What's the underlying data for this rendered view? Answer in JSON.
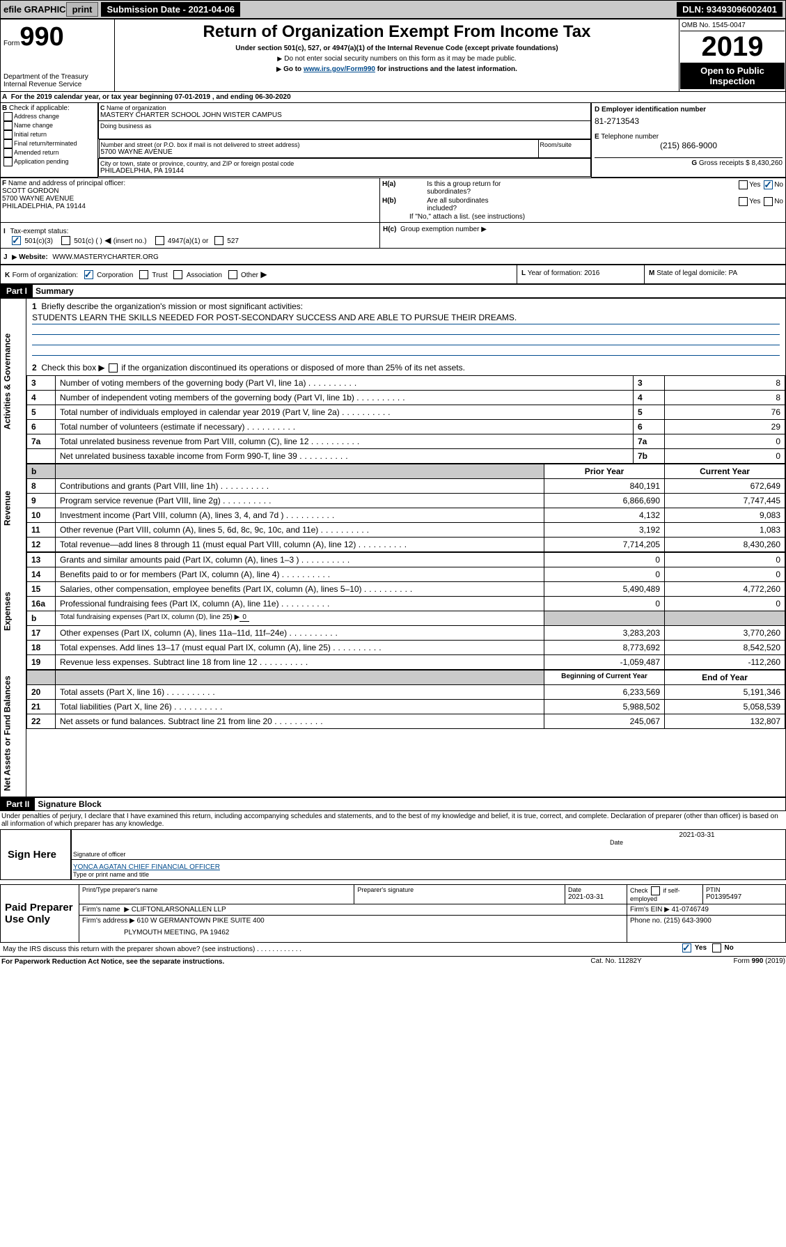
{
  "topbar": {
    "efile": "efile GRAPHIC",
    "print": "print",
    "subdate_label": "Submission Date - 2021-04-06",
    "dln": "DLN: 93493096002401"
  },
  "header": {
    "form": "Form",
    "form990": "990",
    "title": "Return of Organization Exempt From Income Tax",
    "sub1": "Under section 501(c), 527, or 4947(a)(1) of the Internal Revenue Code (except private foundations)",
    "sub2": "Do not enter social security numbers on this form as it may be made public.",
    "sub3_pre": "Go to ",
    "sub3_link": "www.irs.gov/Form990",
    "sub3_post": " for instructions and the latest information.",
    "dept1": "Department of the Treasury",
    "dept2": "Internal Revenue Service",
    "omb": "OMB No. 1545-0047",
    "year": "2019",
    "open1": "Open to Public",
    "open2": "Inspection"
  },
  "a": {
    "line": "For the 2019 calendar year, or tax year beginning 07-01-2019      , and ending 06-30-2020",
    "label": "A"
  },
  "b": {
    "label": "B",
    "check": "Check if applicable:",
    "o1": "Address change",
    "o2": "Name change",
    "o3": "Initial return",
    "o4": "Final return/terminated",
    "o5": "Amended return",
    "o6": "Application pending"
  },
  "c": {
    "label": "C",
    "name_lbl": "Name of organization",
    "name": "MASTERY CHARTER SCHOOL JOHN WISTER CAMPUS",
    "dba_lbl": "Doing business as",
    "addr_lbl": "Number and street (or P.O. box if mail is not delivered to street address)",
    "room": "Room/suite",
    "addr": "5700 WAYNE AVENUE",
    "city_lbl": "City or town, state or province, country, and ZIP or foreign postal code",
    "city": "PHILADELPHIA, PA  19144"
  },
  "d": {
    "label": "D",
    "lbl": "Employer identification number",
    "val": "81-2713543"
  },
  "e": {
    "label": "E",
    "lbl": "Telephone number",
    "val": "(215) 866-9000"
  },
  "g": {
    "label": "G",
    "lbl": "Gross receipts $",
    "val": "8,430,260"
  },
  "f": {
    "label": "F",
    "lbl": "Name and address of principal officer:",
    "n": "SCOTT GORDON",
    "a1": "5700 WAYNE AVENUE",
    "a2": "PHILADELPHIA, PA  19144"
  },
  "h": {
    "a": "H(a)",
    "atxt1": "Is this a group return for",
    "atxt2": "subordinates?",
    "b": "H(b)",
    "btxt1": "Are all subordinates",
    "btxt2": "included?",
    "bnote": "If \"No,\" attach a list. (see instructions)",
    "c": "H(c)",
    "ctxt": "Group exemption number",
    "yes": "Yes",
    "no": "No"
  },
  "i": {
    "label": "I",
    "tax": "Tax-exempt status:",
    "o1": "501(c)(3)",
    "o2": "501(c) (   )",
    "o2a": "(insert no.)",
    "o3": "4947(a)(1) or",
    "o4": "527"
  },
  "j": {
    "label": "J",
    "site": "Website:",
    "url": "WWW.MASTERYCHARTER.ORG"
  },
  "k": {
    "label": "K",
    "lbl": "Form of organization:",
    "o1": "Corporation",
    "o2": "Trust",
    "o3": "Association",
    "o4": "Other"
  },
  "l": {
    "label": "L",
    "lbl": "Year of formation:",
    "val": "2016"
  },
  "m": {
    "label": "M",
    "lbl": "State of legal domicile:",
    "val": "PA"
  },
  "p1": {
    "label": "Part I",
    "title": "Summary"
  },
  "sec_labels": {
    "ag": "Activities & Governance",
    "rev": "Revenue",
    "exp": "Expenses",
    "nab": "Net Assets or Fund Balances"
  },
  "q1": {
    "n": "1",
    "t": "Briefly describe the organization's mission or most significant activities:",
    "val": "STUDENTS LEARN THE SKILLS NEEDED FOR POST-SECONDARY SUCCESS AND ARE ABLE TO PURSUE THEIR DREAMS."
  },
  "q2": {
    "n": "2",
    "t": "Check this box",
    "t2": "if the organization discontinued its operations or disposed of more than 25% of its net assets."
  },
  "rows_ag": [
    {
      "n": "3",
      "t": "Number of voting members of the governing body (Part VI, line 1a)",
      "c": "3",
      "v": "8"
    },
    {
      "n": "4",
      "t": "Number of independent voting members of the governing body (Part VI, line 1b)",
      "c": "4",
      "v": "8"
    },
    {
      "n": "5",
      "t": "Total number of individuals employed in calendar year 2019 (Part V, line 2a)",
      "c": "5",
      "v": "76"
    },
    {
      "n": "6",
      "t": "Total number of volunteers (estimate if necessary)",
      "c": "6",
      "v": "29"
    },
    {
      "n": "7a",
      "t": "Total unrelated business revenue from Part VIII, column (C), line 12",
      "c": "7a",
      "v": "0"
    },
    {
      "n": " ",
      "t": "Net unrelated business taxable income from Form 990-T, line 39",
      "c": "7b",
      "v": "0"
    }
  ],
  "hdrs": {
    "b": "b",
    "py": "Prior Year",
    "cy": "Current Year",
    "bcy": "Beginning of Current Year",
    "eoy": "End of Year"
  },
  "rows_rev": [
    {
      "n": "8",
      "t": "Contributions and grants (Part VIII, line 1h)",
      "p": "840,191",
      "c": "672,649"
    },
    {
      "n": "9",
      "t": "Program service revenue (Part VIII, line 2g)",
      "p": "6,866,690",
      "c": "7,747,445"
    },
    {
      "n": "10",
      "t": "Investment income (Part VIII, column (A), lines 3, 4, and 7d )",
      "p": "4,132",
      "c": "9,083"
    },
    {
      "n": "11",
      "t": "Other revenue (Part VIII, column (A), lines 5, 6d, 8c, 9c, 10c, and 11e)",
      "p": "3,192",
      "c": "1,083"
    },
    {
      "n": "12",
      "t": "Total revenue—add lines 8 through 11 (must equal Part VIII, column (A), line 12)",
      "p": "7,714,205",
      "c": "8,430,260"
    }
  ],
  "rows_exp": [
    {
      "n": "13",
      "t": "Grants and similar amounts paid (Part IX, column (A), lines 1–3 )",
      "p": "0",
      "c": "0"
    },
    {
      "n": "14",
      "t": "Benefits paid to or for members (Part IX, column (A), line 4)",
      "p": "0",
      "c": "0"
    },
    {
      "n": "15",
      "t": "Salaries, other compensation, employee benefits (Part IX, column (A), lines 5–10)",
      "p": "5,490,489",
      "c": "4,772,260"
    },
    {
      "n": "16a",
      "t": "Professional fundraising fees (Part IX, column (A), line 11e)",
      "p": "0",
      "c": "0"
    },
    {
      "n": "b",
      "t": "Total fundraising expenses (Part IX, column (D), line 25) ▶",
      "tv": "0",
      "p": "",
      "c": "",
      "grey": true,
      "sm": true
    },
    {
      "n": "17",
      "t": "Other expenses (Part IX, column (A), lines 11a–11d, 11f–24e)",
      "p": "3,283,203",
      "c": "3,770,260"
    },
    {
      "n": "18",
      "t": "Total expenses. Add lines 13–17 (must equal Part IX, column (A), line 25)",
      "p": "8,773,692",
      "c": "8,542,520"
    },
    {
      "n": "19",
      "t": "Revenue less expenses. Subtract line 18 from line 12",
      "p": "-1,059,487",
      "c": "-112,260"
    }
  ],
  "rows_na": [
    {
      "n": "20",
      "t": "Total assets (Part X, line 16)",
      "p": "6,233,569",
      "c": "5,191,346"
    },
    {
      "n": "21",
      "t": "Total liabilities (Part X, line 26)",
      "p": "5,988,502",
      "c": "5,058,539"
    },
    {
      "n": "22",
      "t": "Net assets or fund balances. Subtract line 21 from line 20",
      "p": "245,067",
      "c": "132,807"
    }
  ],
  "p2": {
    "label": "Part II",
    "title": "Signature Block"
  },
  "perjury": "Under penalties of perjury, I declare that I have examined this return, including accompanying schedules and statements, and to the best of my knowledge and belief, it is true, correct, and complete. Declaration of preparer (other than officer) is based on all information of which preparer has any knowledge.",
  "sign": {
    "here": "Sign Here",
    "sig": "Signature of officer",
    "date": "Date",
    "dval": "2021-03-31",
    "name": "YONCA AGATAN  CHIEF FINANCIAL OFFICER",
    "tlbl": "Type or print name and title"
  },
  "paid": {
    "title": "Paid Preparer Use Only",
    "c1": "Print/Type preparer's name",
    "c2": "Preparer's signature",
    "c3": "Date",
    "c3v": "2021-03-31",
    "c4a": "Check",
    "c4b": "if self-employed",
    "c5": "PTIN",
    "c5v": "P01395497",
    "fn": "Firm's name",
    "fnv": "CLIFTONLARSONALLEN LLP",
    "fa": "Firm's address",
    "fa1": "610 W GERMANTOWN PIKE SUITE 400",
    "fa2": "PLYMOUTH MEETING, PA  19462",
    "ein": "Firm's EIN",
    "einv": "41-0746749",
    "ph": "Phone no.",
    "phv": "(215) 643-3900"
  },
  "bottom": {
    "q": "May the IRS discuss this return with the preparer shown above? (see instructions)",
    "yes": "Yes",
    "no": "No",
    "pra": "For Paperwork Reduction Act Notice, see the separate instructions.",
    "cat": "Cat. No. 11282Y",
    "form": "Form 990 (2019)"
  }
}
